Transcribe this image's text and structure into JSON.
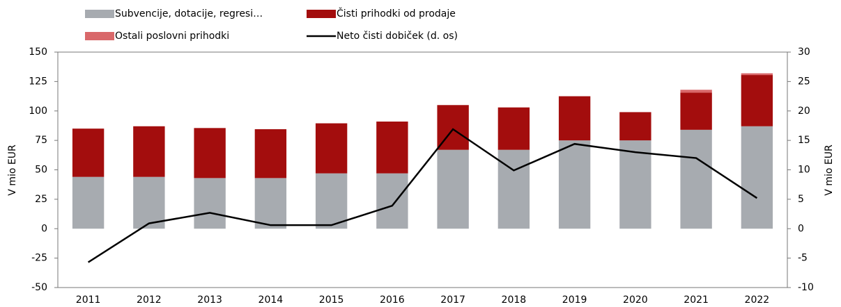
{
  "chart_data": {
    "type": "bar",
    "categories": [
      "2011",
      "2012",
      "2013",
      "2014",
      "2015",
      "2016",
      "2017",
      "2018",
      "2019",
      "2020",
      "2021",
      "2022"
    ],
    "series": [
      {
        "name": "Subvencije, dotacije, regresi…",
        "color": "#a7abb0",
        "values": [
          44,
          44,
          43,
          43,
          47,
          47,
          67,
          67,
          75,
          75,
          84,
          87
        ]
      },
      {
        "name": "Čisti prihodki od prodaje",
        "color": "#a30d0d",
        "values": [
          41,
          43,
          42.5,
          41.5,
          42.5,
          44,
          38,
          36,
          37.5,
          24,
          31.5,
          43.5
        ]
      },
      {
        "name": "Ostali poslovni prihodki",
        "color": "#d9686a",
        "values": [
          0,
          0,
          0,
          0,
          0,
          0,
          0,
          0,
          0,
          0,
          2.5,
          1.5
        ]
      },
      {
        "name": "Neto čisti dobiček (d. os)",
        "color": "#000000",
        "axis": "y2",
        "type": "line",
        "values": [
          -5.7,
          0.9,
          2.7,
          0.6,
          0.6,
          3.9,
          16.9,
          9.9,
          14.4,
          13,
          12,
          5.2
        ]
      }
    ],
    "ylabel": "V mio EUR",
    "y2label": "V mio EUR",
    "ylim": [
      -50,
      150
    ],
    "yticks": [
      -50,
      -25,
      0,
      25,
      50,
      75,
      100,
      125,
      150
    ],
    "y2lim": [
      -10,
      30
    ],
    "y2ticks": [
      -10,
      -5,
      0,
      5,
      10,
      15,
      20,
      25,
      30
    ]
  }
}
